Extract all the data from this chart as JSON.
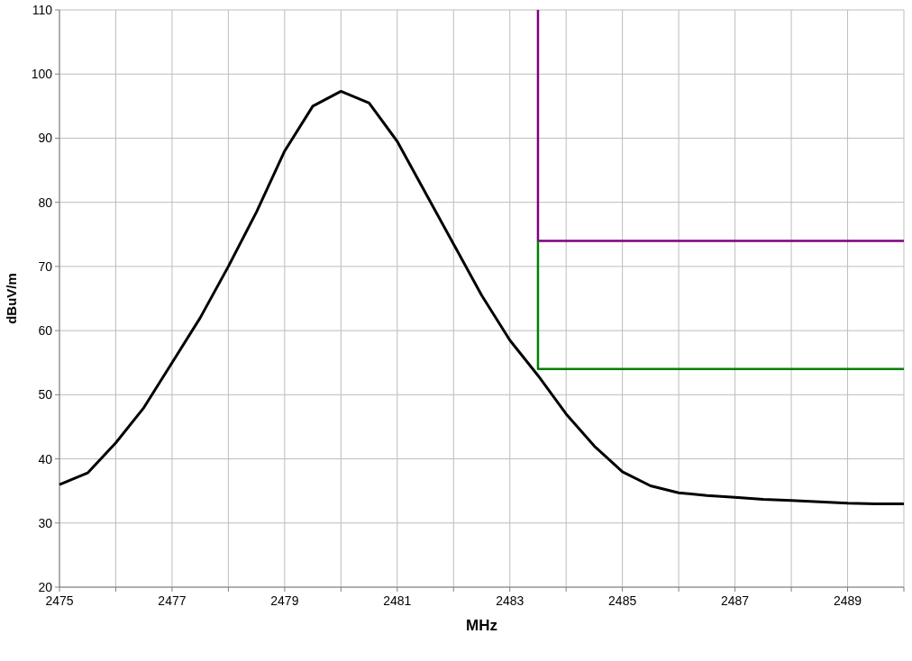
{
  "chart_data": {
    "type": "line",
    "xlabel": "MHz",
    "ylabel": "dBuV/m",
    "xlim": [
      2475,
      2490
    ],
    "ylim": [
      20,
      110
    ],
    "xticks": [
      2475,
      {
        "value": 2476,
        "label": null
      },
      2477,
      {
        "value": 2478,
        "label": null
      },
      2479,
      {
        "value": 2480,
        "label": null
      },
      2481,
      {
        "value": 2482,
        "label": null
      },
      2483,
      {
        "value": 2484,
        "label": null
      },
      2485,
      {
        "value": 2486,
        "label": null
      },
      2487,
      {
        "value": 2488,
        "label": null
      },
      2489,
      {
        "value": 2490,
        "label": null
      }
    ],
    "yticks": [
      20,
      30,
      40,
      50,
      60,
      70,
      80,
      90,
      100,
      110
    ],
    "grid": true,
    "series": [
      {
        "color": "#000000",
        "x": [
          2475,
          2475.5,
          2476,
          2476.5,
          2477,
          2477.5,
          2478,
          2478.5,
          2479,
          2479.5,
          2480,
          2480.5,
          2481,
          2481.5,
          2482,
          2482.5,
          2483,
          2483.5,
          2484,
          2484.5,
          2485,
          2485.5,
          2486,
          2486.5,
          2487,
          2487.5,
          2488,
          2488.5,
          2489,
          2489.5,
          2490
        ],
        "values": [
          36,
          37.8,
          42.5,
          48,
          55,
          62,
          70,
          78.5,
          88,
          95,
          97.3,
          95.5,
          89.5,
          81.5,
          73.5,
          65.5,
          58.5,
          53,
          47,
          42,
          38,
          35.8,
          34.7,
          34.3,
          34,
          33.7,
          33.5,
          33.3,
          33.1,
          33,
          33
        ]
      },
      {
        "color": "#800080",
        "x": [
          2483.5,
          2483.5,
          2490
        ],
        "values": [
          110,
          74,
          74
        ]
      },
      {
        "color": "#008000",
        "x": [
          2483.5,
          2483.5,
          2490
        ],
        "values": [
          74,
          54,
          54
        ]
      }
    ]
  }
}
